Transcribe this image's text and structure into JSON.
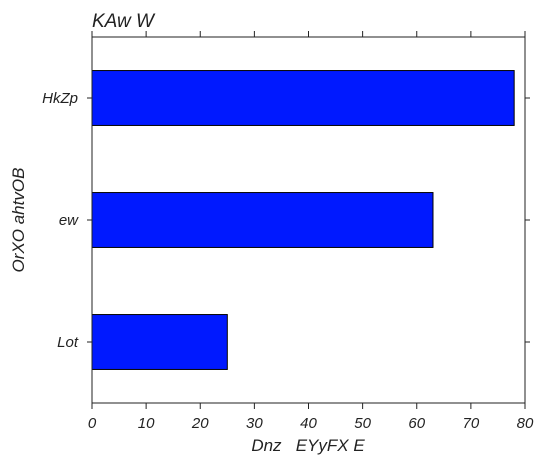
{
  "chart_data": {
    "type": "bar",
    "orientation": "horizontal",
    "title": "KAw W",
    "xlabel": "Dnz   EYyFX E",
    "ylabel": "OrXO ahtvOB",
    "categories": [
      "HkZp",
      "ew",
      "Lot"
    ],
    "values": [
      78,
      63,
      25
    ],
    "xlim": [
      0,
      80
    ],
    "xticks": [
      0,
      10,
      20,
      30,
      40,
      50,
      60,
      70,
      80
    ],
    "grid": false,
    "bar_color": "#0019ff",
    "bar_edge_color": "#000000"
  }
}
